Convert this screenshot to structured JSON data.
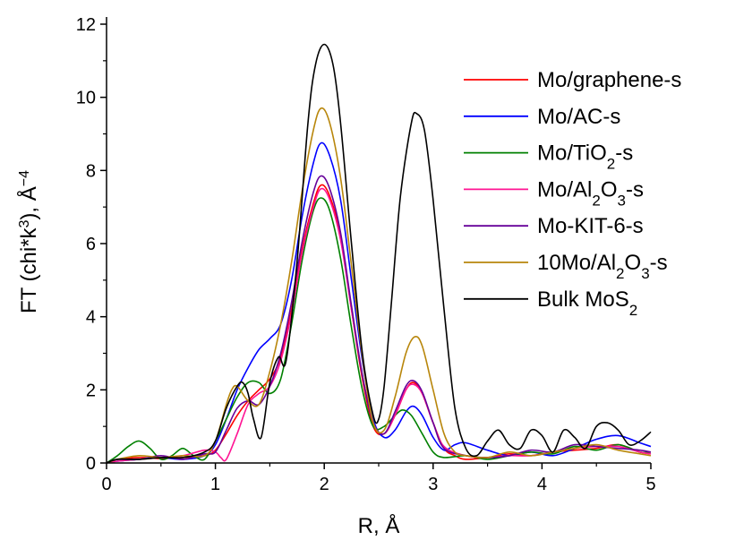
{
  "chart_data": {
    "type": "line",
    "title": "",
    "xlabel": "R, Å",
    "ylabel_parts": [
      "FT (chi*k",
      "3",
      "), Å",
      "−4"
    ],
    "xlim": [
      0,
      5
    ],
    "ylim": [
      0,
      12
    ],
    "x_ticks": [
      0,
      1,
      2,
      3,
      4,
      5
    ],
    "y_ticks": [
      0,
      2,
      4,
      6,
      8,
      10,
      12
    ],
    "grid": false,
    "legend_position": "top-right",
    "series": [
      {
        "name": "Mo/graphene-s",
        "label_parts": [
          [
            "Mo/graphene-s",
            false
          ]
        ],
        "color": "#ff0000",
        "x": [
          0,
          0.1,
          0.3,
          0.5,
          0.7,
          0.9,
          1.0,
          1.1,
          1.2,
          1.3,
          1.4,
          1.5,
          1.6,
          1.7,
          1.8,
          1.9,
          1.97,
          2.05,
          2.15,
          2.25,
          2.35,
          2.45,
          2.55,
          2.65,
          2.75,
          2.82,
          2.9,
          3.0,
          3.1,
          3.2,
          3.3,
          3.5,
          3.7,
          3.9,
          4.1,
          4.3,
          4.5,
          4.7,
          4.9,
          5.0
        ],
        "y": [
          0,
          0.1,
          0.15,
          0.12,
          0.15,
          0.2,
          0.35,
          0.8,
          1.3,
          1.7,
          2.0,
          2.3,
          2.9,
          4.2,
          5.9,
          7.1,
          7.6,
          7.3,
          6.2,
          4.2,
          2.3,
          1.0,
          0.8,
          1.3,
          2.0,
          2.2,
          1.9,
          1.1,
          0.4,
          0.2,
          0.1,
          0.15,
          0.25,
          0.2,
          0.3,
          0.35,
          0.4,
          0.5,
          0.3,
          0.25
        ]
      },
      {
        "name": "Mo/AC-s",
        "label_parts": [
          [
            "Mo/AC-s",
            false
          ]
        ],
        "color": "#0000ff",
        "x": [
          0,
          0.1,
          0.3,
          0.5,
          0.7,
          0.9,
          1.0,
          1.1,
          1.2,
          1.3,
          1.4,
          1.5,
          1.6,
          1.7,
          1.8,
          1.9,
          1.97,
          2.05,
          2.15,
          2.25,
          2.35,
          2.45,
          2.55,
          2.65,
          2.75,
          2.82,
          2.9,
          3.0,
          3.1,
          3.2,
          3.3,
          3.5,
          3.7,
          3.9,
          4.1,
          4.3,
          4.5,
          4.7,
          4.9,
          5.0
        ],
        "y": [
          0,
          0.05,
          0.1,
          0.15,
          0.1,
          0.2,
          0.5,
          1.2,
          2.0,
          2.6,
          3.1,
          3.4,
          3.8,
          5.0,
          6.8,
          8.2,
          8.75,
          8.4,
          7.2,
          5.0,
          2.8,
          1.2,
          0.7,
          0.9,
          1.4,
          1.55,
          1.3,
          0.7,
          0.35,
          0.5,
          0.55,
          0.35,
          0.2,
          0.3,
          0.2,
          0.4,
          0.65,
          0.75,
          0.55,
          0.45
        ]
      },
      {
        "name": "Mo/TiO2-s",
        "label_parts": [
          [
            "Mo/TiO",
            false
          ],
          [
            "2",
            true
          ],
          [
            "-s",
            false
          ]
        ],
        "color": "#008000",
        "x": [
          0,
          0.1,
          0.2,
          0.3,
          0.4,
          0.5,
          0.6,
          0.7,
          0.8,
          0.9,
          1.0,
          1.1,
          1.2,
          1.3,
          1.4,
          1.5,
          1.6,
          1.7,
          1.8,
          1.9,
          1.97,
          2.05,
          2.15,
          2.25,
          2.35,
          2.45,
          2.55,
          2.65,
          2.72,
          2.8,
          2.9,
          3.0,
          3.1,
          3.3,
          3.5,
          3.7,
          3.9,
          4.1,
          4.3,
          4.5,
          4.7,
          4.9,
          5.0
        ],
        "y": [
          0,
          0.2,
          0.45,
          0.6,
          0.4,
          0.1,
          0.2,
          0.4,
          0.2,
          0.1,
          0.6,
          1.2,
          1.8,
          2.2,
          2.2,
          1.9,
          2.3,
          3.8,
          5.6,
          6.9,
          7.25,
          6.9,
          5.6,
          3.7,
          2.0,
          1.0,
          1.0,
          1.3,
          1.45,
          1.3,
          0.8,
          0.3,
          0.15,
          0.2,
          0.1,
          0.2,
          0.3,
          0.25,
          0.45,
          0.35,
          0.5,
          0.3,
          0.3
        ]
      },
      {
        "name": "Mo/Al2O3-s",
        "label_parts": [
          [
            "Mo/Al",
            false
          ],
          [
            "2",
            true
          ],
          [
            "O",
            false
          ],
          [
            "3",
            true
          ],
          [
            "-s",
            false
          ]
        ],
        "color": "#ff1493",
        "x": [
          0,
          0.1,
          0.3,
          0.5,
          0.7,
          0.9,
          1.0,
          1.05,
          1.1,
          1.2,
          1.3,
          1.4,
          1.5,
          1.6,
          1.7,
          1.8,
          1.9,
          1.97,
          2.05,
          2.15,
          2.25,
          2.35,
          2.45,
          2.55,
          2.65,
          2.75,
          2.82,
          2.9,
          3.0,
          3.1,
          3.3,
          3.5,
          3.7,
          3.9,
          4.1,
          4.3,
          4.5,
          4.7,
          4.9,
          5.0
        ],
        "y": [
          0,
          0.05,
          0.1,
          0.15,
          0.2,
          0.35,
          0.3,
          0.15,
          0.1,
          0.8,
          1.6,
          1.9,
          2.1,
          2.8,
          4.1,
          5.8,
          7.0,
          7.5,
          7.2,
          6.1,
          4.2,
          2.4,
          1.1,
          0.8,
          1.3,
          2.0,
          2.15,
          1.9,
          1.1,
          0.45,
          0.2,
          0.15,
          0.2,
          0.2,
          0.3,
          0.4,
          0.45,
          0.45,
          0.3,
          0.25
        ]
      },
      {
        "name": "Mo-KIT-6-s",
        "label_parts": [
          [
            "Mo-KIT-6-s",
            false
          ]
        ],
        "color": "#660099",
        "x": [
          0,
          0.1,
          0.3,
          0.5,
          0.7,
          0.9,
          1.0,
          1.1,
          1.2,
          1.3,
          1.4,
          1.5,
          1.6,
          1.7,
          1.8,
          1.9,
          1.97,
          2.05,
          2.15,
          2.25,
          2.35,
          2.45,
          2.55,
          2.65,
          2.75,
          2.82,
          2.9,
          3.0,
          3.1,
          3.3,
          3.5,
          3.7,
          3.9,
          4.1,
          4.3,
          4.5,
          4.7,
          4.9,
          5.0
        ],
        "y": [
          0,
          0.1,
          0.1,
          0.2,
          0.1,
          0.25,
          0.3,
          0.9,
          1.5,
          1.7,
          1.6,
          2.1,
          3.0,
          4.4,
          6.1,
          7.4,
          7.85,
          7.5,
          6.3,
          4.3,
          2.4,
          1.1,
          0.8,
          1.4,
          2.1,
          2.25,
          1.95,
          1.1,
          0.4,
          0.2,
          0.15,
          0.2,
          0.35,
          0.3,
          0.5,
          0.45,
          0.4,
          0.35,
          0.3
        ]
      },
      {
        "name": "10Mo/Al2O3-s",
        "label_parts": [
          [
            "10Mo/Al",
            false
          ],
          [
            "2",
            true
          ],
          [
            "O",
            false
          ],
          [
            "3",
            true
          ],
          [
            "-s",
            false
          ]
        ],
        "color": "#b8860b",
        "x": [
          0,
          0.1,
          0.3,
          0.5,
          0.7,
          0.9,
          1.0,
          1.1,
          1.15,
          1.2,
          1.3,
          1.4,
          1.5,
          1.6,
          1.7,
          1.8,
          1.9,
          1.97,
          2.05,
          2.15,
          2.25,
          2.35,
          2.45,
          2.55,
          2.65,
          2.75,
          2.83,
          2.9,
          3.0,
          3.1,
          3.2,
          3.3,
          3.5,
          3.7,
          3.9,
          4.1,
          4.3,
          4.5,
          4.7,
          4.9,
          5.0
        ],
        "y": [
          0,
          0.1,
          0.2,
          0.15,
          0.2,
          0.2,
          0.6,
          1.6,
          2.0,
          2.1,
          1.7,
          1.6,
          2.5,
          3.8,
          5.5,
          7.5,
          9.1,
          9.7,
          9.3,
          7.8,
          5.4,
          2.9,
          1.1,
          0.9,
          1.8,
          3.0,
          3.45,
          3.2,
          2.0,
          0.8,
          0.3,
          0.2,
          0.15,
          0.3,
          0.2,
          0.3,
          0.4,
          0.5,
          0.35,
          0.25,
          0.2
        ]
      },
      {
        "name": "Bulk MoS2",
        "label_parts": [
          [
            "Bulk MoS",
            false
          ],
          [
            "2",
            true
          ]
        ],
        "color": "#000000",
        "x": [
          0,
          0.1,
          0.3,
          0.5,
          0.7,
          0.9,
          1.0,
          1.1,
          1.2,
          1.25,
          1.3,
          1.35,
          1.42,
          1.5,
          1.58,
          1.65,
          1.75,
          1.85,
          1.92,
          2.0,
          2.08,
          2.15,
          2.25,
          2.35,
          2.45,
          2.5,
          2.55,
          2.62,
          2.7,
          2.8,
          2.85,
          2.92,
          3.0,
          3.1,
          3.2,
          3.3,
          3.4,
          3.5,
          3.6,
          3.7,
          3.8,
          3.9,
          4.0,
          4.1,
          4.2,
          4.3,
          4.4,
          4.5,
          4.6,
          4.7,
          4.8,
          4.9,
          5.0
        ],
        "y": [
          0,
          0.1,
          0.1,
          0.15,
          0.15,
          0.3,
          0.6,
          1.5,
          2.1,
          2.2,
          1.9,
          1.2,
          0.7,
          2.2,
          2.9,
          2.8,
          5.5,
          9.3,
          10.9,
          11.45,
          10.9,
          9.3,
          6.0,
          3.0,
          1.3,
          1.2,
          2.1,
          4.5,
          7.3,
          9.3,
          9.55,
          9.1,
          7.2,
          4.2,
          1.5,
          0.4,
          0.2,
          0.6,
          0.9,
          0.5,
          0.4,
          0.9,
          0.75,
          0.3,
          0.9,
          0.7,
          0.4,
          1.0,
          1.1,
          0.9,
          0.5,
          0.6,
          0.85
        ]
      }
    ]
  }
}
